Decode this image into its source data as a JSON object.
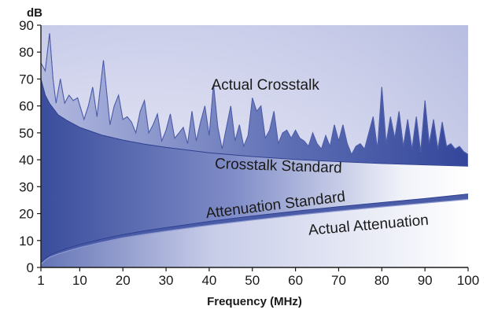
{
  "chart_data": {
    "type": "area",
    "title": "",
    "xlabel": "Frequency (MHz)",
    "ylabel": "dB",
    "xlim": [
      1,
      100
    ],
    "ylim": [
      0,
      90
    ],
    "x_ticks": [
      1,
      10,
      20,
      30,
      40,
      50,
      60,
      70,
      80,
      90,
      100
    ],
    "y_ticks": [
      0,
      10,
      20,
      30,
      40,
      50,
      60,
      70,
      80,
      90
    ],
    "grid": false,
    "legend": "none",
    "colors": {
      "plot_bg_top": "#c9cdea",
      "plot_bg_bottom": "#ffffff",
      "fill_dark": "#3a4d9c",
      "fill_light": "#ffffff",
      "actual_crosstalk_fill": "#6f7fbd",
      "line_light": "#9ea8d6"
    },
    "series": [
      {
        "name": "Actual Crosstalk",
        "x": [
          1,
          2,
          3,
          3.8,
          4.5,
          5.5,
          6.5,
          7.5,
          8.5,
          9.5,
          11,
          12,
          13,
          14,
          15.5,
          17,
          18,
          19,
          20,
          21,
          22,
          23,
          24,
          25,
          26,
          27,
          28,
          29,
          30,
          31,
          32,
          33,
          34,
          35,
          36,
          37,
          38,
          39,
          40,
          41,
          42,
          43,
          44,
          45,
          46,
          47,
          48,
          49,
          50,
          51,
          52,
          53,
          54,
          55,
          56,
          57,
          58,
          59,
          60,
          61,
          62,
          63,
          64,
          65,
          66,
          67,
          68,
          69,
          70,
          71,
          72,
          73,
          74,
          75,
          76,
          77,
          78,
          79,
          80,
          81,
          82,
          83,
          84,
          85,
          86,
          87,
          88,
          89,
          90,
          91,
          92,
          93,
          94,
          95,
          96,
          97,
          98,
          99,
          100
        ],
        "values": [
          76,
          73,
          87,
          70,
          61,
          70,
          61,
          64,
          62,
          63,
          55,
          60,
          67,
          56,
          77,
          53,
          60,
          64,
          55,
          56,
          54,
          50,
          58,
          62,
          50,
          53,
          57,
          47,
          51,
          57,
          48,
          50,
          52,
          46,
          58,
          47,
          54,
          60,
          49,
          68,
          52,
          44,
          52,
          60,
          47,
          53,
          45,
          49,
          63,
          58,
          60,
          48,
          51,
          58,
          46,
          50,
          51,
          48,
          51,
          48,
          47,
          45,
          50,
          46,
          44,
          49,
          45,
          53,
          47,
          53,
          46,
          42,
          45,
          46,
          44,
          50,
          56,
          44,
          67,
          46,
          56,
          48,
          58,
          45,
          55,
          44,
          56,
          43,
          62,
          46,
          55,
          44,
          54,
          45,
          46,
          44,
          45,
          43,
          42
        ]
      },
      {
        "name": "Crosstalk Standard",
        "x": [
          1,
          2,
          3,
          5,
          7,
          10,
          15,
          20,
          25,
          30,
          40,
          50,
          60,
          70,
          80,
          90,
          100
        ],
        "values": [
          70,
          64,
          60.9,
          56.7,
          54.6,
          52,
          49.2,
          47.3,
          45.8,
          44.6,
          42.6,
          41.2,
          40.1,
          39.3,
          38.6,
          38.1,
          37.6
        ]
      },
      {
        "name": "Attenuation Standard",
        "x": [
          1,
          2,
          3,
          5,
          7,
          10,
          15,
          20,
          25,
          30,
          40,
          50,
          60,
          70,
          80,
          90,
          100
        ],
        "values": [
          1.9,
          3.3,
          4.5,
          5.9,
          7.0,
          8.5,
          10.5,
          12.2,
          13.6,
          14.8,
          17.1,
          19.1,
          20.9,
          22.6,
          24.1,
          25.6,
          27.3
        ]
      },
      {
        "name": "Actual Attenuation",
        "x": [
          1,
          2,
          3,
          5,
          7,
          10,
          15,
          20,
          25,
          30,
          40,
          50,
          60,
          70,
          80,
          90,
          100
        ],
        "values": [
          1.2,
          2.7,
          3.8,
          5.0,
          6.0,
          7.4,
          9.3,
          11.0,
          12.3,
          13.5,
          15.7,
          17.6,
          19.4,
          21.0,
          22.5,
          23.9,
          25.3
        ]
      }
    ],
    "annotations": [
      {
        "text": "Actual Crosstalk",
        "x": 53,
        "y": 66,
        "rotate": 0
      },
      {
        "text": "Crosstalk Standard",
        "x": 56,
        "y": 36,
        "rotate": 2
      },
      {
        "text": "Attenuation Standard",
        "x": 55.5,
        "y": 21.5,
        "rotate": -7
      },
      {
        "text": "Actual Attenuation",
        "x": 77,
        "y": 14,
        "rotate": -5
      }
    ]
  }
}
